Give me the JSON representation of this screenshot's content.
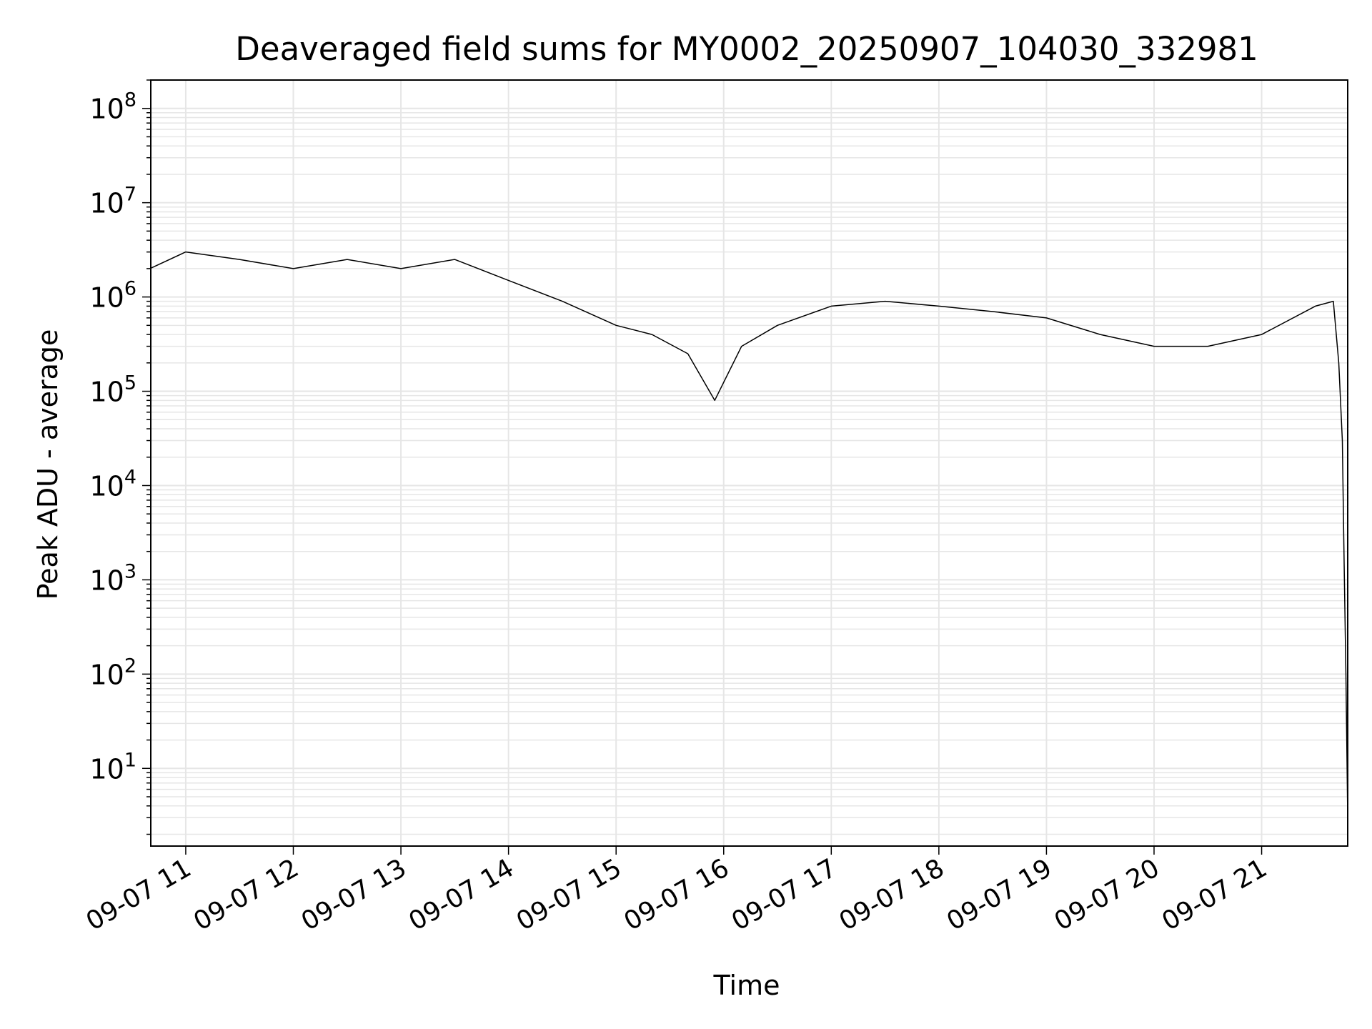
{
  "chart_data": {
    "type": "line",
    "title": "Deaveraged field sums for MY0002_20250907_104030_332981",
    "xlabel": "Time",
    "ylabel": "Peak ADU - average",
    "yscale": "log",
    "ylim": [
      1.5,
      200000000
    ],
    "xlim": [
      "2025-09-07 10:40:30",
      "2025-09-07 21:48:00"
    ],
    "x_tick_labels": [
      "09-07 11",
      "09-07 12",
      "09-07 13",
      "09-07 14",
      "09-07 15",
      "09-07 16",
      "09-07 17",
      "09-07 18",
      "09-07 19",
      "09-07 20",
      "09-07 21"
    ],
    "x_ticks": [
      "2025-09-07 11:00",
      "2025-09-07 12:00",
      "2025-09-07 13:00",
      "2025-09-07 14:00",
      "2025-09-07 15:00",
      "2025-09-07 16:00",
      "2025-09-07 17:00",
      "2025-09-07 18:00",
      "2025-09-07 19:00",
      "2025-09-07 20:00",
      "2025-09-07 21:00"
    ],
    "y_ticks": [
      {
        "value": 10,
        "base": "10",
        "exp": "1"
      },
      {
        "value": 100,
        "base": "10",
        "exp": "2"
      },
      {
        "value": 1000,
        "base": "10",
        "exp": "3"
      },
      {
        "value": 10000,
        "base": "10",
        "exp": "4"
      },
      {
        "value": 100000,
        "base": "10",
        "exp": "5"
      },
      {
        "value": 1000000,
        "base": "10",
        "exp": "6"
      },
      {
        "value": 10000000,
        "base": "10",
        "exp": "7"
      },
      {
        "value": 100000000,
        "base": "10",
        "exp": "8"
      }
    ],
    "grid": true,
    "line_color": "#000000",
    "grid_color": "#e6e6e6",
    "series": [
      {
        "x": [
          "2025-09-07 10:40",
          "2025-09-07 11:00",
          "2025-09-07 11:30",
          "2025-09-07 12:00",
          "2025-09-07 12:30",
          "2025-09-07 13:00",
          "2025-09-07 13:30",
          "2025-09-07 14:00",
          "2025-09-07 14:30",
          "2025-09-07 15:00",
          "2025-09-07 15:20",
          "2025-09-07 15:40",
          "2025-09-07 15:55",
          "2025-09-07 16:10",
          "2025-09-07 16:30",
          "2025-09-07 17:00",
          "2025-09-07 17:30",
          "2025-09-07 18:00",
          "2025-09-07 18:30",
          "2025-09-07 19:00",
          "2025-09-07 19:30",
          "2025-09-07 20:00",
          "2025-09-07 20:30",
          "2025-09-07 21:00",
          "2025-09-07 21:30",
          "2025-09-07 21:40",
          "2025-09-07 21:43",
          "2025-09-07 21:45",
          "2025-09-07 21:46",
          "2025-09-07 21:47",
          "2025-09-07 21:48"
        ],
        "y": [
          2000000,
          3000000,
          2500000,
          2000000,
          2500000,
          2000000,
          2500000,
          1500000,
          900000,
          500000,
          400000,
          250000,
          80000,
          300000,
          500000,
          800000,
          900000,
          800000,
          700000,
          600000,
          400000,
          300000,
          300000,
          400000,
          800000,
          900000,
          200000,
          30000,
          1500,
          100,
          3
        ]
      }
    ]
  }
}
